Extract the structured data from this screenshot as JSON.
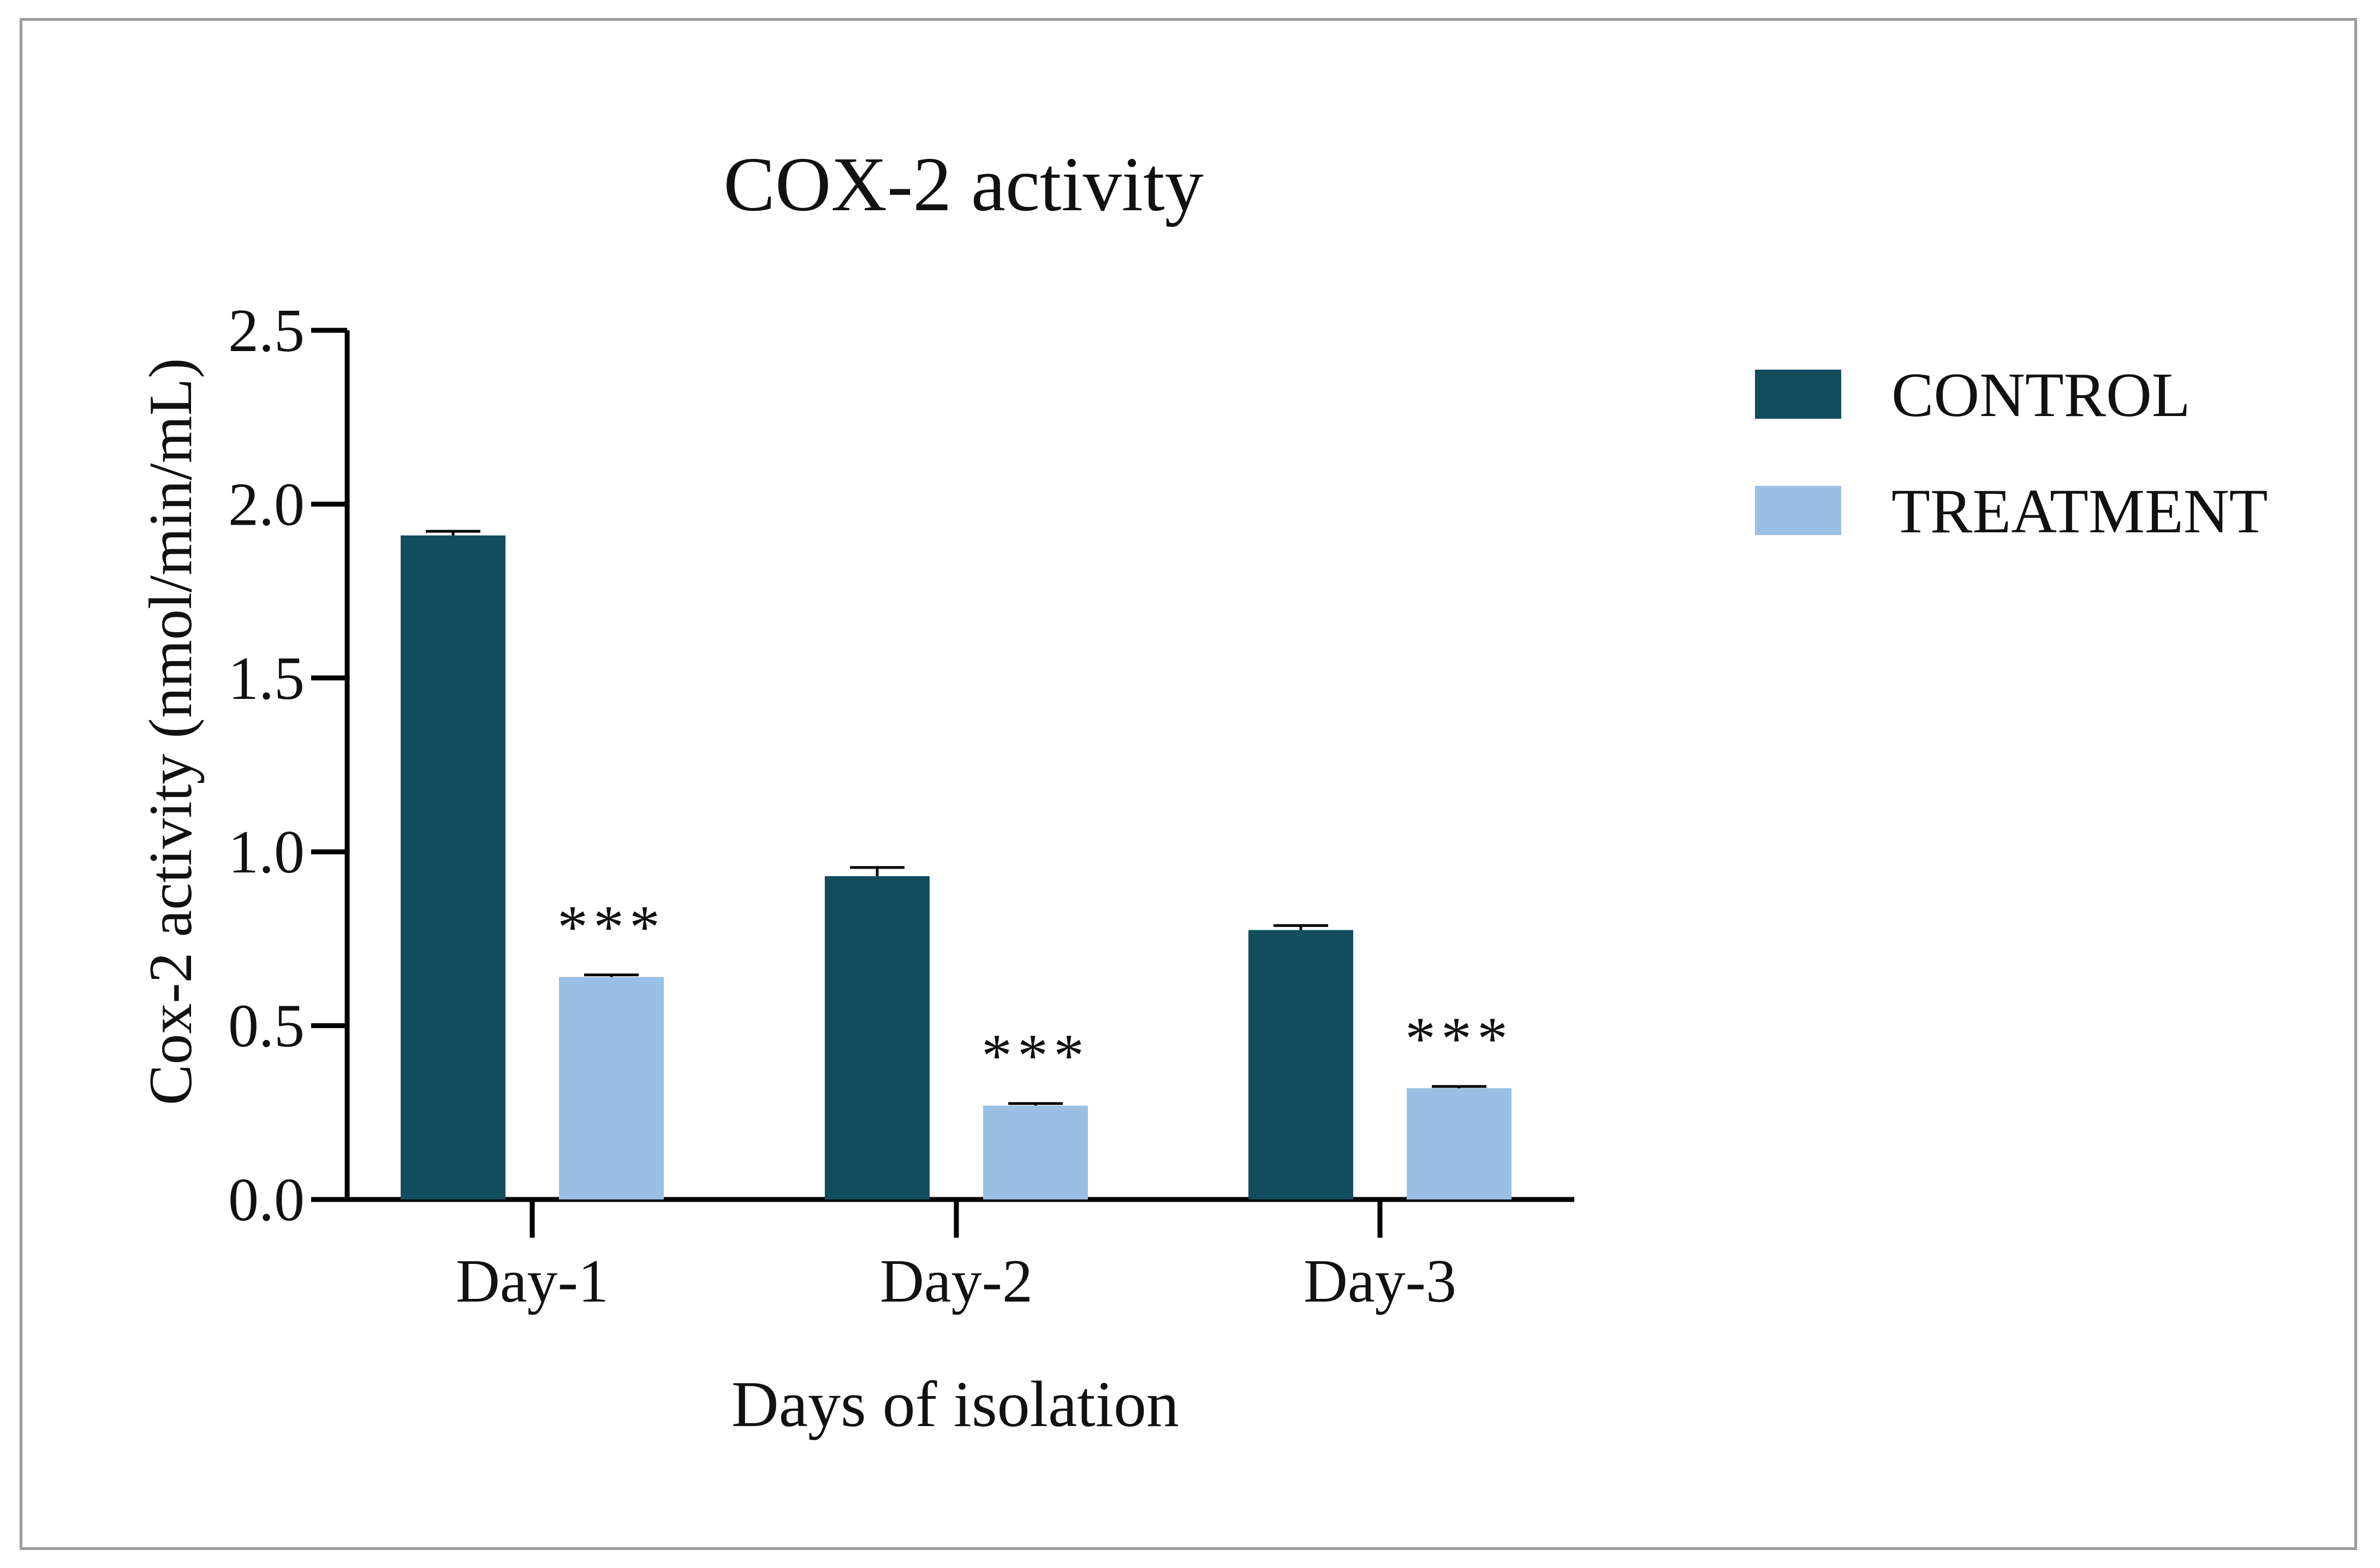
{
  "chart_data": {
    "type": "bar",
    "title": "COX-2 activity",
    "xlabel": "Days of isolation",
    "ylabel": "Cox-2 activity (nmol/min/mL)",
    "categories": [
      "Day-1",
      "Day-2",
      "Day-3"
    ],
    "ylim": [
      0,
      2.5
    ],
    "yticks": [
      "0.0",
      "0.5",
      "1.0",
      "1.5",
      "2.0",
      "2.5"
    ],
    "legend_position": "top-right",
    "series": [
      {
        "name": "CONTROL",
        "color": "#124d5e",
        "values": [
          1.91,
          0.93,
          0.775
        ],
        "errors": [
          0.012,
          0.025,
          0.013
        ]
      },
      {
        "name": "TREATMENT",
        "color": "#9bbfe4",
        "values": [
          0.64,
          0.27,
          0.32
        ],
        "errors": [
          0.006,
          0.006,
          0.005
        ]
      }
    ],
    "annotations": [
      "***",
      "***",
      "***"
    ]
  }
}
